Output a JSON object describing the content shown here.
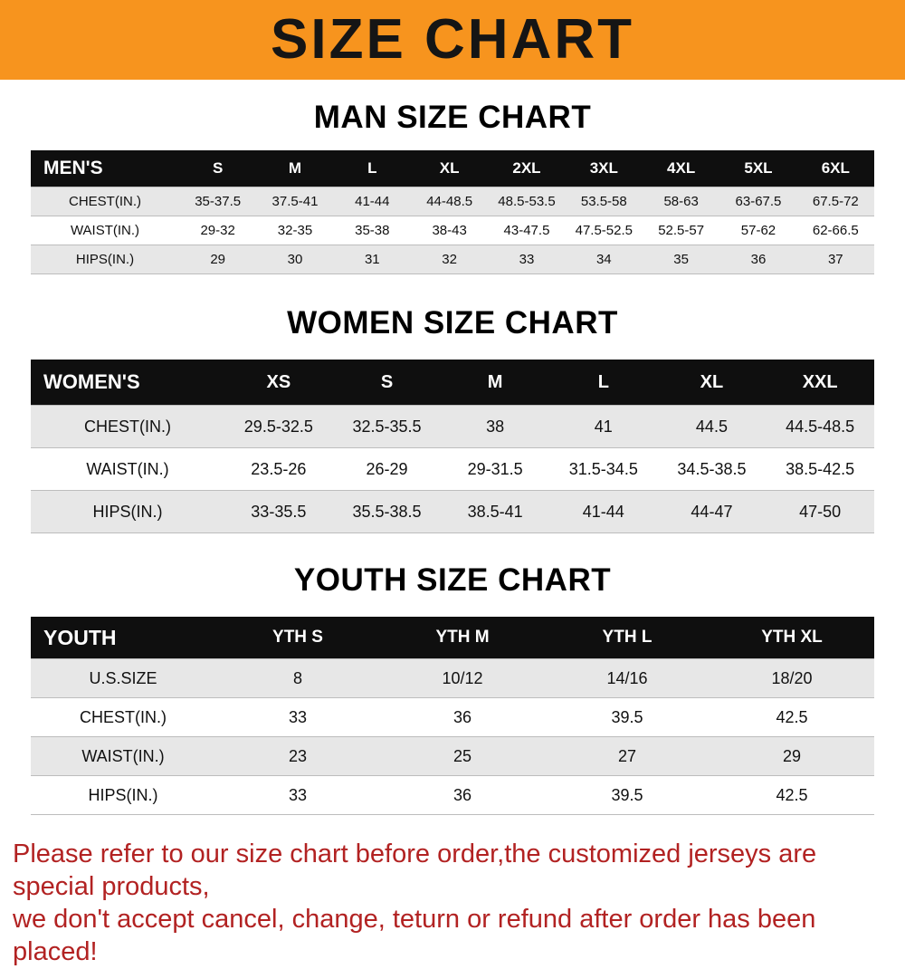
{
  "banner": {
    "text": "SIZE CHART",
    "bg_color": "#f7941e",
    "text_color": "#151515"
  },
  "colors": {
    "table_header_bg": "#0f0f0f",
    "table_header_text": "#ffffff",
    "row_alt_gray": "#e7e7e7",
    "note_red": "#b22222"
  },
  "men": {
    "heading": "MAN SIZE CHART",
    "table": {
      "header": [
        "MEN'S",
        "S",
        "M",
        "L",
        "XL",
        "2XL",
        "3XL",
        "4XL",
        "5XL",
        "6XL"
      ],
      "rows": [
        [
          "CHEST(IN.)",
          "35-37.5",
          "37.5-41",
          "41-44",
          "44-48.5",
          "48.5-53.5",
          "53.5-58",
          "58-63",
          "63-67.5",
          "67.5-72"
        ],
        [
          "WAIST(IN.)",
          "29-32",
          "32-35",
          "35-38",
          "38-43",
          "43-47.5",
          "47.5-52.5",
          "52.5-57",
          "57-62",
          "62-66.5"
        ],
        [
          "HIPS(IN.)",
          "29",
          "30",
          "31",
          "32",
          "33",
          "34",
          "35",
          "36",
          "37"
        ]
      ]
    }
  },
  "women": {
    "heading": "WOMEN SIZE CHART",
    "table": {
      "header": [
        "WOMEN'S",
        "XS",
        "S",
        "M",
        "L",
        "XL",
        "XXL"
      ],
      "rows": [
        [
          "CHEST(IN.)",
          "29.5-32.5",
          "32.5-35.5",
          "38",
          "41",
          "44.5",
          "44.5-48.5"
        ],
        [
          "WAIST(IN.)",
          "23.5-26",
          "26-29",
          "29-31.5",
          "31.5-34.5",
          "34.5-38.5",
          "38.5-42.5"
        ],
        [
          "HIPS(IN.)",
          "33-35.5",
          "35.5-38.5",
          "38.5-41",
          "41-44",
          "44-47",
          "47-50"
        ]
      ]
    }
  },
  "youth": {
    "heading": "YOUTH SIZE CHART",
    "table": {
      "header": [
        "YOUTH",
        "YTH S",
        "YTH M",
        "YTH L",
        "YTH XL"
      ],
      "rows": [
        [
          "U.S.SIZE",
          "8",
          "10/12",
          "14/16",
          "18/20"
        ],
        [
          "CHEST(IN.)",
          "33",
          "36",
          "39.5",
          "42.5"
        ],
        [
          "WAIST(IN.)",
          "23",
          "25",
          "27",
          "29"
        ],
        [
          "HIPS(IN.)",
          "33",
          "36",
          "39.5",
          "42.5"
        ]
      ]
    }
  },
  "note": {
    "line1": "Please refer to our size chart before order,the customized jerseys are special products,",
    "line2": "we don't accept cancel, change, teturn or refund after order has been placed!"
  }
}
